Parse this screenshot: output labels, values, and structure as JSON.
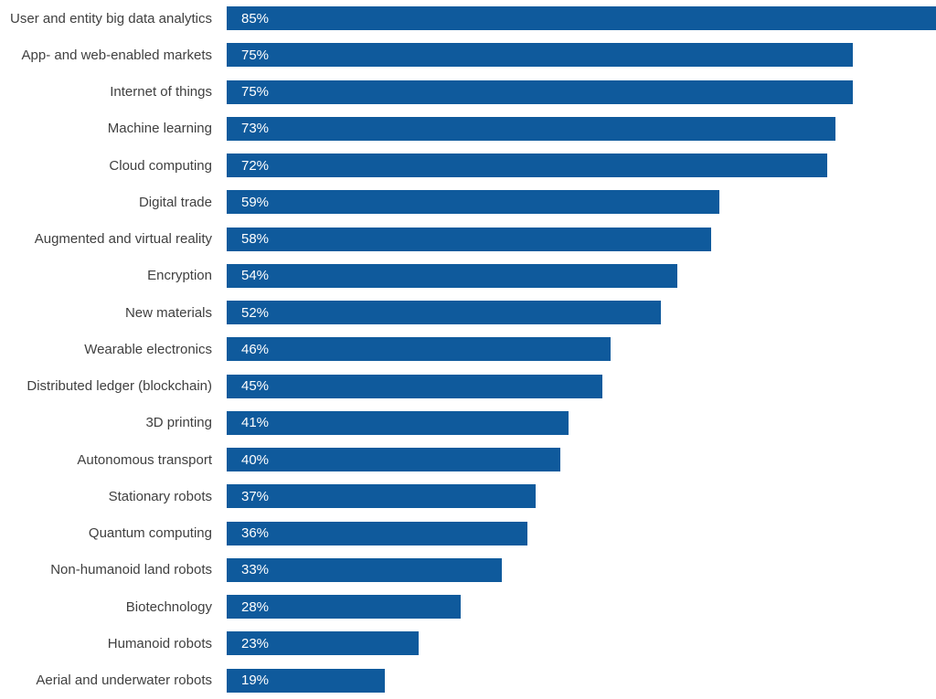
{
  "chart_data": {
    "type": "bar",
    "orientation": "horizontal",
    "title": "",
    "xlabel": "",
    "ylabel": "",
    "value_format": "percent",
    "bar_color": "#0f5a9c",
    "label_color": "#404040",
    "value_label_color": "#ffffff",
    "scale_max": 85,
    "xlim": [
      0,
      100
    ],
    "grid": false,
    "legend": false,
    "categories": [
      "User and entity big data analytics",
      "App- and web-enabled markets",
      "Internet of things",
      "Machine learning",
      "Cloud computing",
      "Digital trade",
      "Augmented and virtual reality",
      "Encryption",
      "New materials",
      "Wearable electronics",
      "Distributed ledger (blockchain)",
      "3D printing",
      "Autonomous transport",
      "Stationary robots",
      "Quantum computing",
      "Non-humanoid land robots",
      "Biotechnology",
      "Humanoid robots",
      "Aerial and underwater robots"
    ],
    "values": [
      85,
      75,
      75,
      73,
      72,
      59,
      58,
      54,
      52,
      46,
      45,
      41,
      40,
      37,
      36,
      33,
      28,
      23,
      19
    ],
    "value_labels": [
      "85%",
      "75%",
      "75%",
      "73%",
      "72%",
      "59%",
      "58%",
      "54%",
      "52%",
      "46%",
      "45%",
      "41%",
      "40%",
      "37%",
      "36%",
      "33%",
      "28%",
      "23%",
      "19%"
    ]
  }
}
